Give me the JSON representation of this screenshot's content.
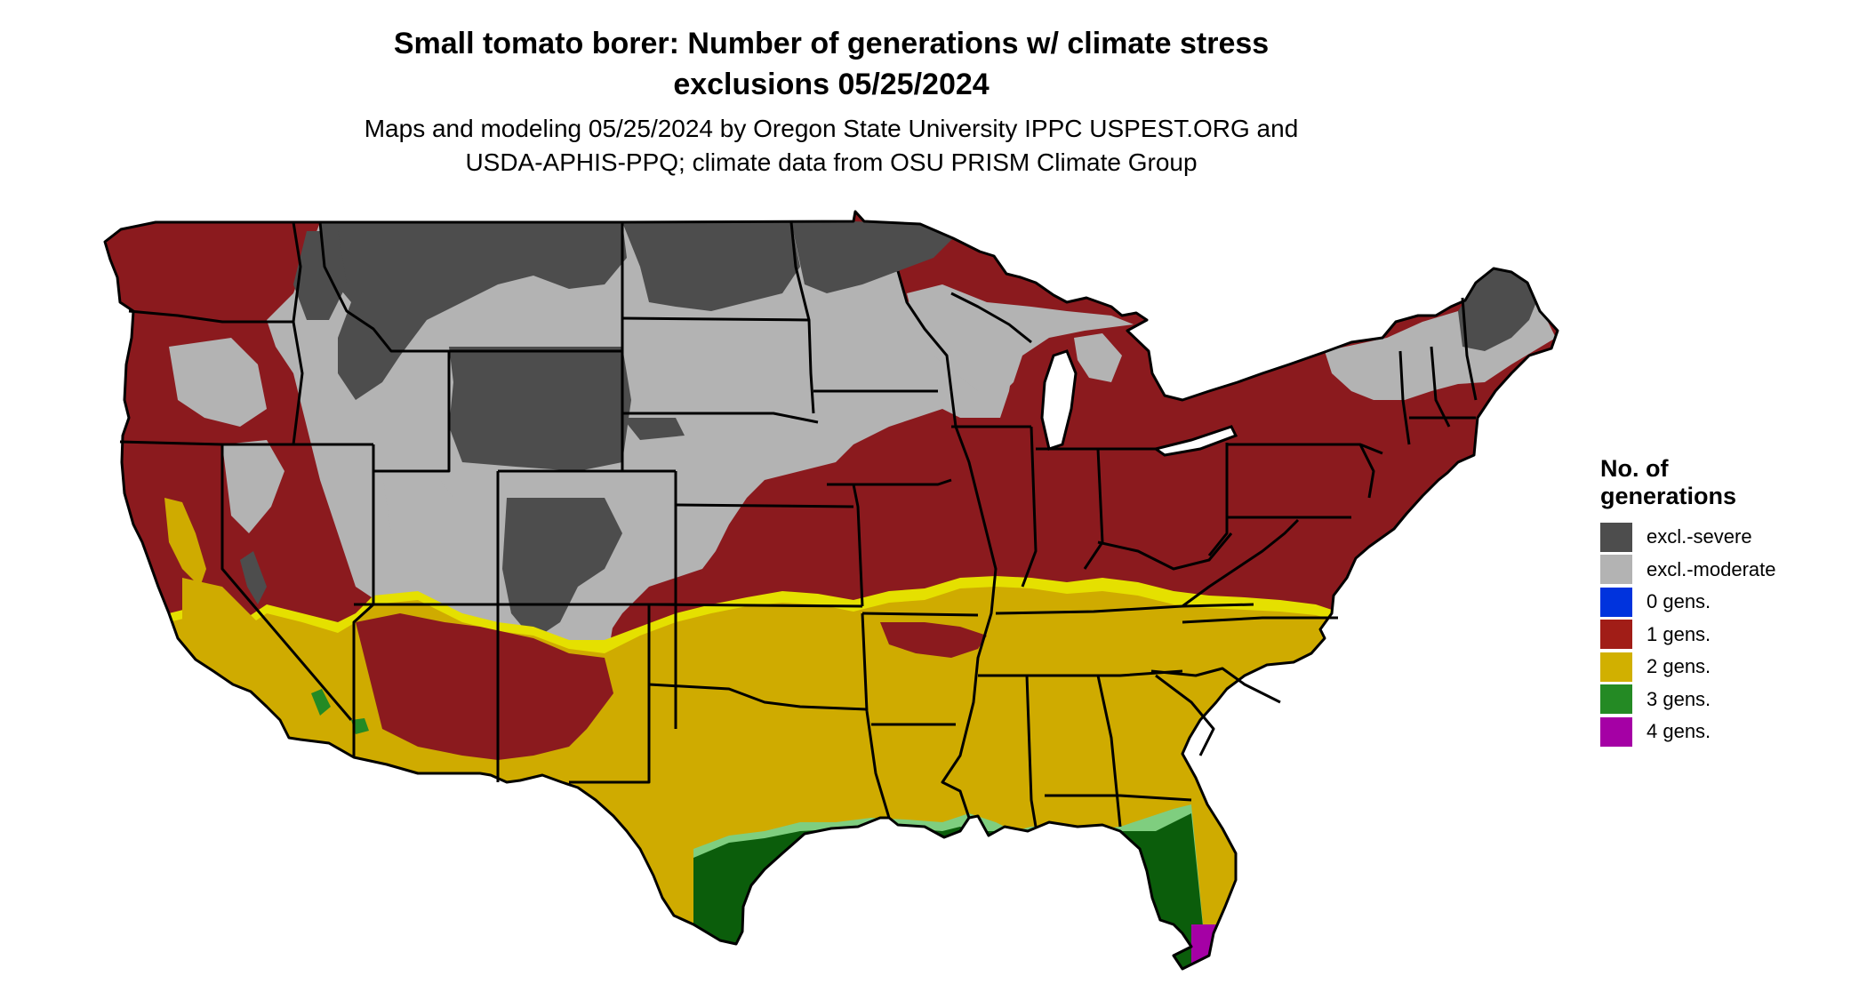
{
  "title_line1": "Small tomato borer: Number of generations w/ climate stress",
  "title_line2": "exclusions 05/25/2024",
  "subtitle_line1": "Maps and modeling 05/25/2024 by Oregon State University IPPC USPEST.ORG and",
  "subtitle_line2": "USDA-APHIS-PPQ; climate data from OSU PRISM Climate Group",
  "legend": {
    "title_line1": "No. of",
    "title_line2": "generations",
    "items": [
      {
        "label": "excl.-severe",
        "color": "#4d4d4d"
      },
      {
        "label": "excl.-moderate",
        "color": "#b3b3b3"
      },
      {
        "label": "0 gens.",
        "color": "#0033dd"
      },
      {
        "label": "1 gens.",
        "color": "#a11d17"
      },
      {
        "label": "2 gens.",
        "color": "#d1b000"
      },
      {
        "label": "3 gens.",
        "color": "#248a24"
      },
      {
        "label": "4 gens.",
        "color": "#a500a5"
      }
    ]
  },
  "map_colors": {
    "severe": "#4d4d4d",
    "moderate": "#b3b3b3",
    "one_gen": "#8b1a1e",
    "two_gen": "#cfab00",
    "two_gen_edge": "#e5e000",
    "three_gen": "#0b5d0b",
    "three_gen_edge": "#7fce7f",
    "four_gen": "#a500a5",
    "border": "#000000"
  }
}
